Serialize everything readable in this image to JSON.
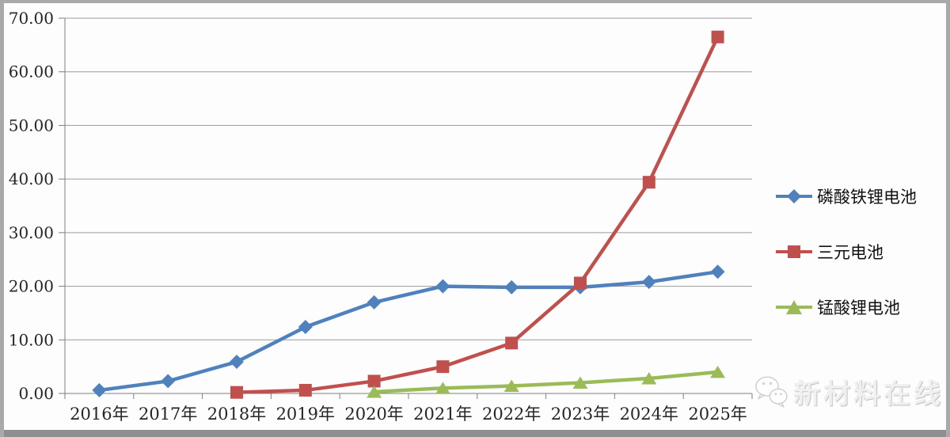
{
  "watermark": {
    "text": "新材料在线",
    "icon": "wechat-icon"
  },
  "frame_color": "#a9a9a9",
  "chart_data": {
    "type": "line",
    "title": "",
    "xlabel": "",
    "ylabel": "",
    "categories": [
      "2016年",
      "2017年",
      "2018年",
      "2019年",
      "2020年",
      "2021年",
      "2022年",
      "2023年",
      "2024年",
      "2025年"
    ],
    "series": [
      {
        "id": "lfp",
        "name": "磷酸铁锂电池",
        "marker": "diamond",
        "color": "#4F81BD",
        "values": [
          0.6,
          2.3,
          5.9,
          12.4,
          17.0,
          20.0,
          19.8,
          19.8,
          20.8,
          22.7
        ]
      },
      {
        "id": "ternary",
        "name": "三元电池",
        "marker": "square",
        "color": "#C0504D",
        "values": [
          null,
          null,
          0.2,
          0.6,
          2.3,
          5.0,
          9.4,
          20.6,
          39.4,
          66.5
        ]
      },
      {
        "id": "lmo",
        "name": "锰酸锂电池",
        "marker": "triangle",
        "color": "#9BBB59",
        "values": [
          null,
          null,
          null,
          null,
          0.3,
          1.0,
          1.4,
          2.0,
          2.8,
          4.0
        ]
      }
    ],
    "ylim": [
      0,
      70
    ],
    "y_tick_step": 10,
    "y_tick_labels": [
      "0.00",
      "10.00",
      "20.00",
      "30.00",
      "40.00",
      "50.00",
      "60.00",
      "70.00"
    ],
    "grid": true,
    "legend_position": "right",
    "gridline_color": "#9c9c9c",
    "axis_color": "#7f7f7f"
  }
}
